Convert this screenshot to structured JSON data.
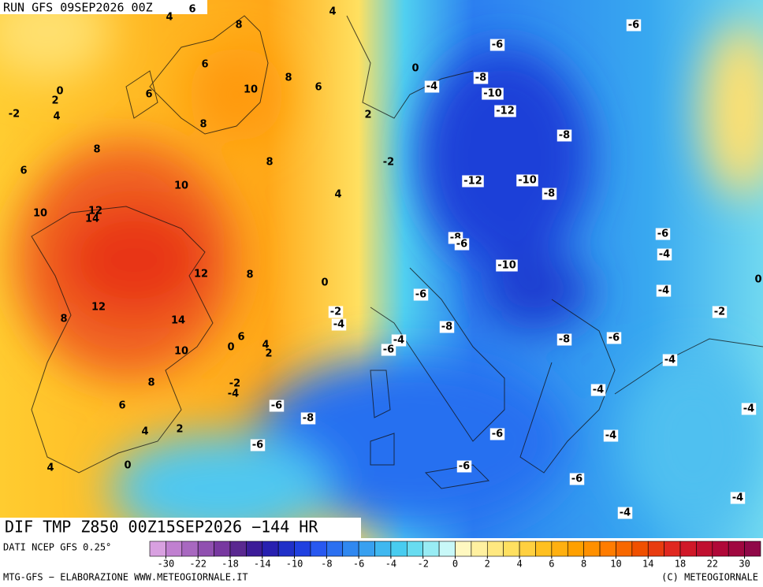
{
  "header": {
    "run": "RUN GFS 09SEP2026 00Z"
  },
  "map": {
    "title": "DIF TMP Z850 00Z15SEP2026 −144 HR",
    "contour_labels": [
      6,
      4,
      4,
      8,
      6,
      0,
      0,
      2,
      4,
      -2,
      6,
      10,
      8,
      6,
      2,
      8,
      8,
      8,
      6,
      -2,
      10,
      4,
      10,
      12,
      14,
      12,
      8,
      0,
      12,
      8,
      14,
      10,
      0,
      6,
      4,
      2,
      8,
      -2,
      -4,
      6,
      4,
      2,
      0,
      4,
      0,
      -6,
      -6,
      -4,
      -8,
      -10,
      -12,
      -8,
      -12,
      -10,
      -8,
      -8,
      -6,
      -6,
      -4,
      -10,
      -4,
      -6,
      -2,
      -4,
      -8,
      -4,
      -6,
      -8,
      -6,
      -2,
      -4,
      -4,
      -4,
      -6,
      -8,
      -6,
      -4,
      -6,
      -6,
      -6,
      -4,
      -4
    ]
  },
  "footer": {
    "source": "DATI NCEP GFS 0.25°",
    "credit": "MTG-GFS − ELABORAZIONE WWW.METEOGIORNALE.IT",
    "copyright": "(C) METEOGIORNALE"
  },
  "colorbar": {
    "ticks": [
      -30,
      -22,
      -18,
      -14,
      -10,
      -8,
      -6,
      -4,
      -2,
      0,
      2,
      4,
      6,
      8,
      10,
      14,
      18,
      22,
      30
    ],
    "colors": [
      "#d8a0e0",
      "#c080d0",
      "#a868c0",
      "#9050b0",
      "#7838a0",
      "#5a2890",
      "#3c1c98",
      "#2820b0",
      "#2030c8",
      "#2040e0",
      "#2858f0",
      "#2c70f0",
      "#3088f0",
      "#38a0f0",
      "#40b8f0",
      "#48ccf0",
      "#68dcf0",
      "#98ecf4",
      "#c8f8f8",
      "#fff8c0",
      "#fff0a0",
      "#ffe880",
      "#ffe060",
      "#ffd040",
      "#ffc020",
      "#ffb010",
      "#ffa000",
      "#ff9000",
      "#ff7c00",
      "#f86800",
      "#f05000",
      "#e83c10",
      "#e02820",
      "#d01828",
      "#c01030",
      "#b00838",
      "#a00840",
      "#900848"
    ]
  }
}
